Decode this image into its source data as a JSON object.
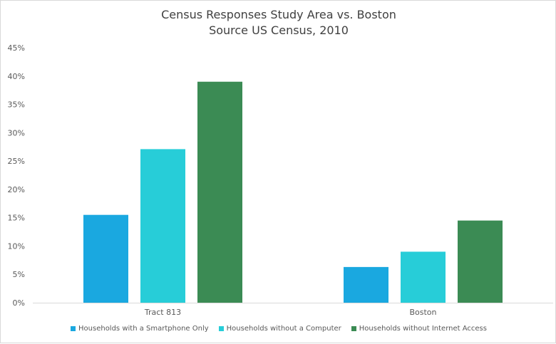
{
  "chart_data": {
    "type": "bar",
    "title": "Census Responses Study Area vs. Boston",
    "subtitle": "Source US Census, 2010",
    "categories": [
      "Tract 813",
      "Boston"
    ],
    "series": [
      {
        "name": "Households with a Smartphone Only",
        "values": [
          15.5,
          6.3
        ],
        "color": "#1aa8e0"
      },
      {
        "name": "Households without a Computer",
        "values": [
          27.1,
          9.0
        ],
        "color": "#27cdd8"
      },
      {
        "name": "Households without Internet Access",
        "values": [
          39.0,
          14.5
        ],
        "color": "#3b8b54"
      }
    ],
    "y_ticks": [
      "0%",
      "5%",
      "10%",
      "15%",
      "20%",
      "25%",
      "30%",
      "35%",
      "40%",
      "45%"
    ],
    "ylim": [
      0,
      45
    ],
    "xlabel": "",
    "ylabel": "",
    "grid": false,
    "legend_position": "bottom"
  }
}
